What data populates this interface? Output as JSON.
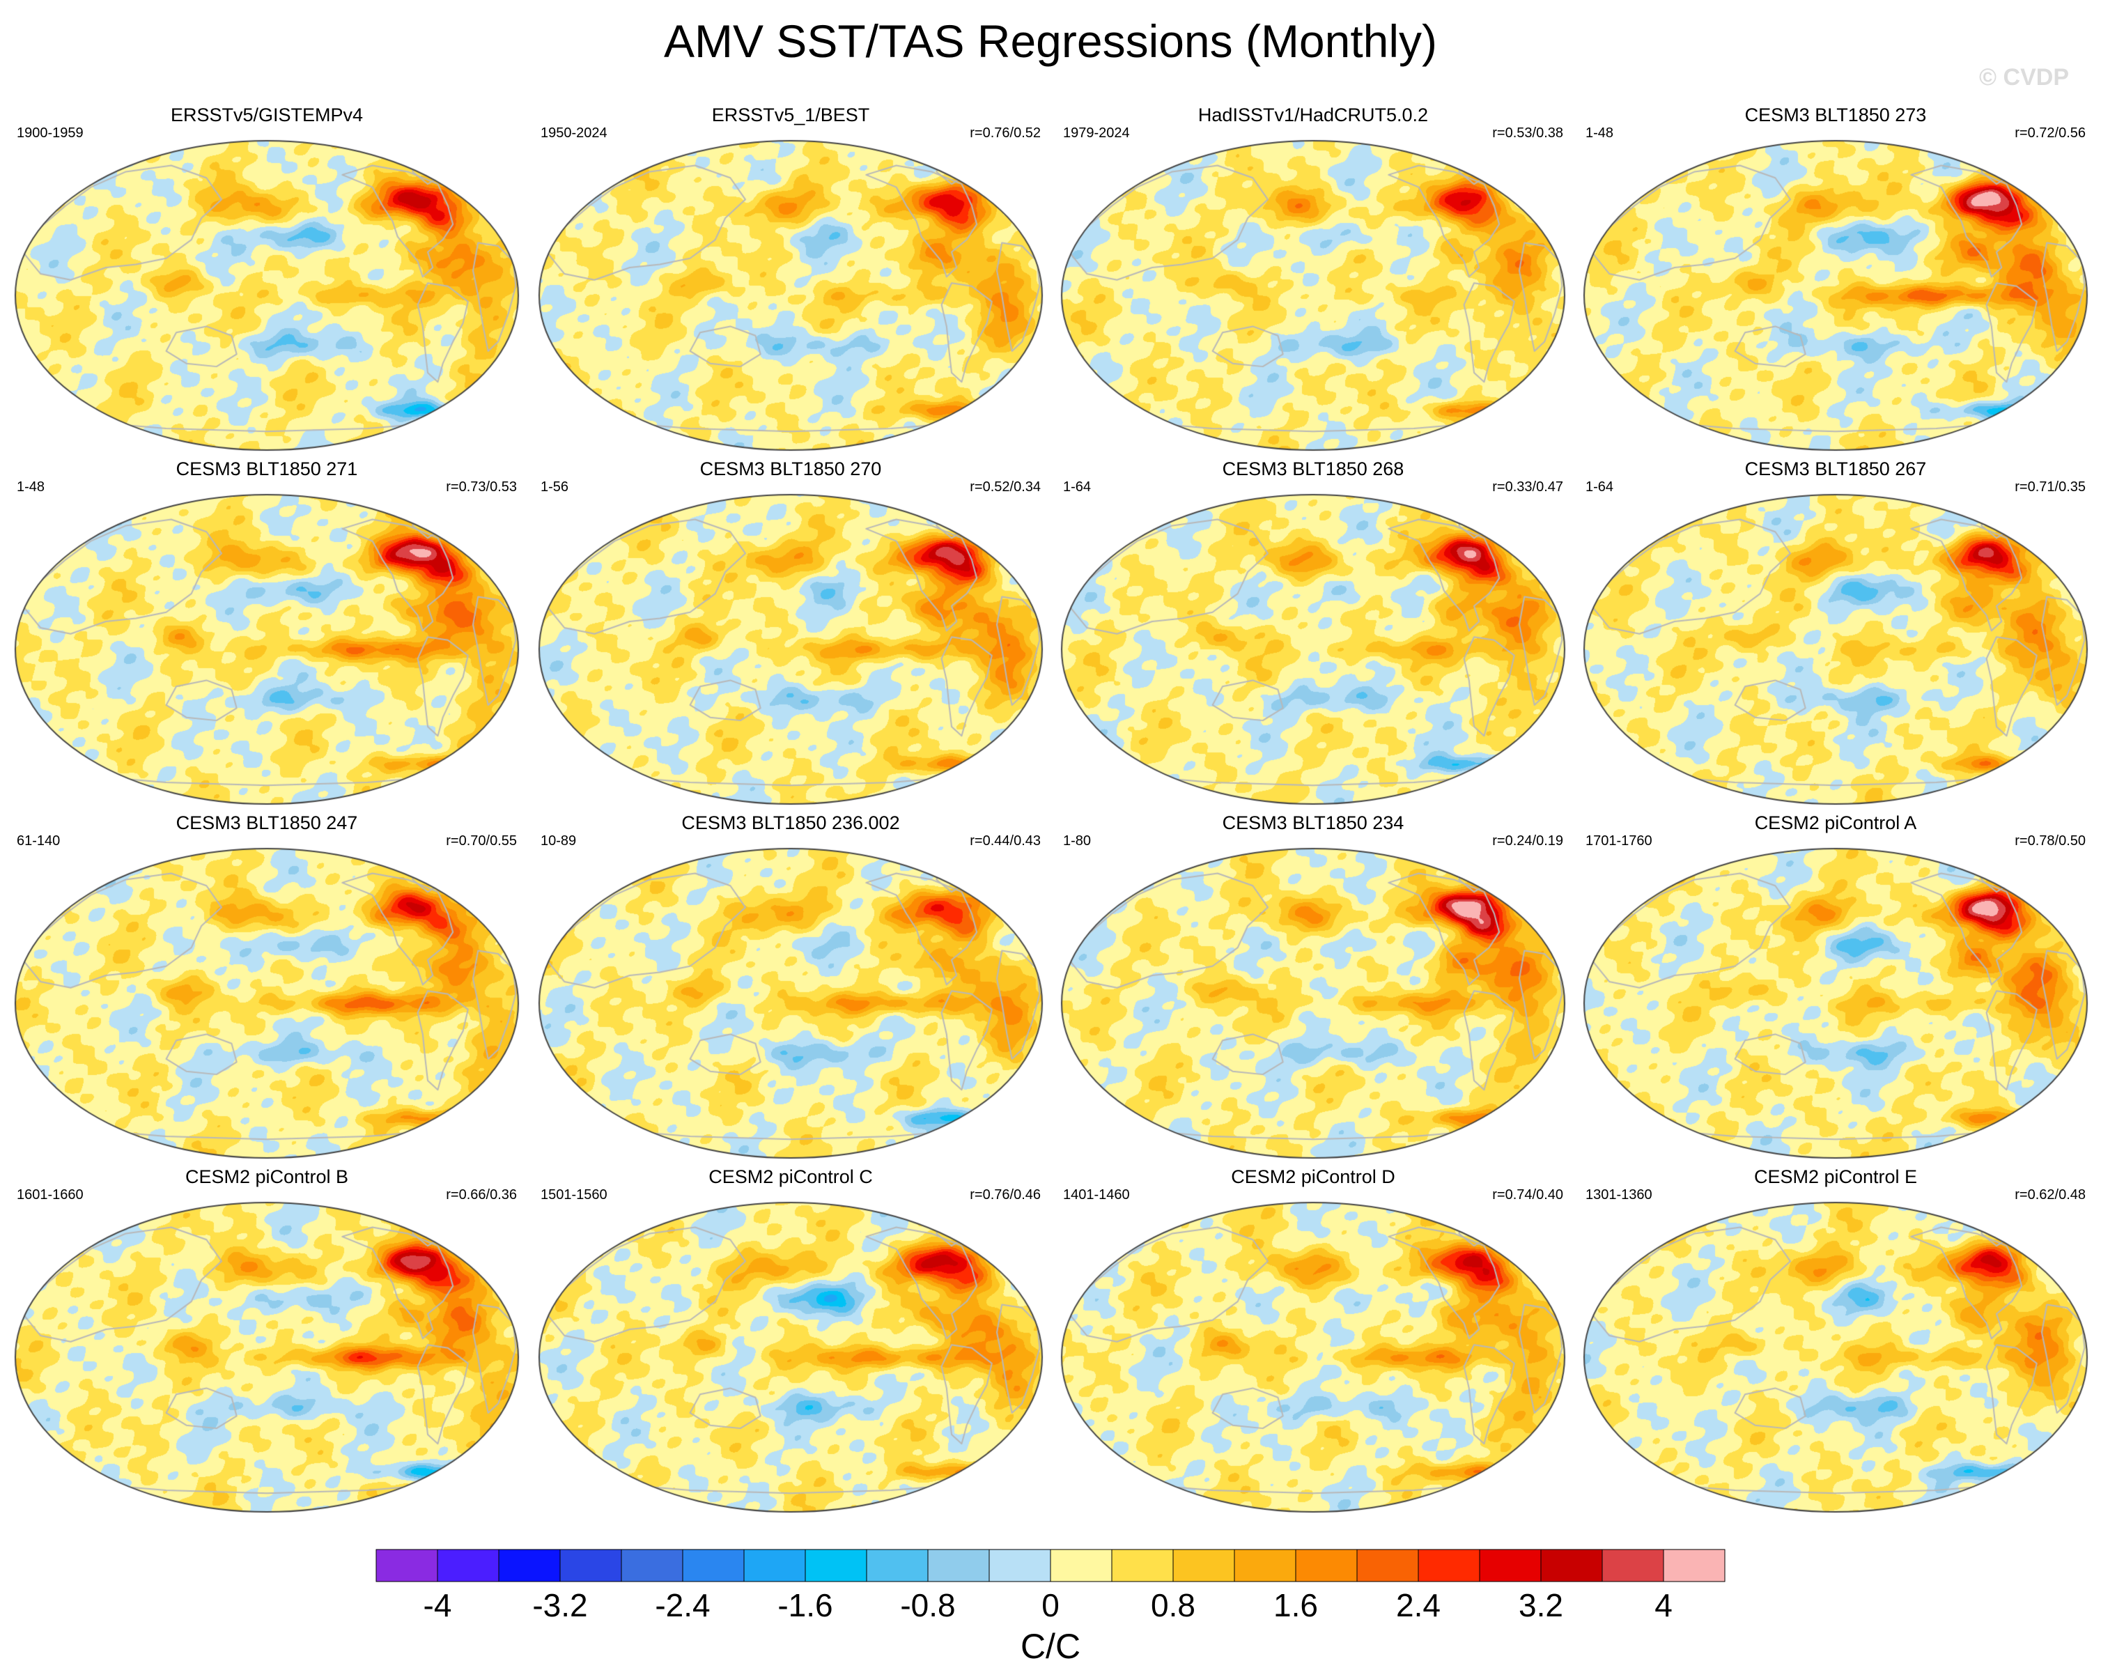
{
  "title": "AMV SST/TAS Regressions (Monthly)",
  "watermark": "© CVDP",
  "colors": {
    "background": "#ffffff",
    "land_outline": "#b8b8b8",
    "map_border": "#444444"
  },
  "panels": [
    {
      "title": "ERSSTv5/GISTEMPv4",
      "years": "1900-1959",
      "corr": "",
      "variant": 0
    },
    {
      "title": "ERSSTv5_1/BEST",
      "years": "1950-2024",
      "corr": "r=0.76/0.52",
      "variant": 1
    },
    {
      "title": "HadISSTv1/HadCRUT5.0.2",
      "years": "1979-2024",
      "corr": "r=0.53/0.38",
      "variant": 2
    },
    {
      "title": "CESM3 BLT1850 273",
      "years": "1-48",
      "corr": "r=0.72/0.56",
      "variant": 3
    },
    {
      "title": "CESM3 BLT1850 271",
      "years": "1-48",
      "corr": "r=0.73/0.53",
      "variant": 4
    },
    {
      "title": "CESM3 BLT1850 270",
      "years": "1-56",
      "corr": "r=0.52/0.34",
      "variant": 5
    },
    {
      "title": "CESM3 BLT1850 268",
      "years": "1-64",
      "corr": "r=0.33/0.47",
      "variant": 6
    },
    {
      "title": "CESM3 BLT1850 267",
      "years": "1-64",
      "corr": "r=0.71/0.35",
      "variant": 7
    },
    {
      "title": "CESM3 BLT1850 247",
      "years": "61-140",
      "corr": "r=0.70/0.55",
      "variant": 8
    },
    {
      "title": "CESM3 BLT1850 236.002",
      "years": "10-89",
      "corr": "r=0.44/0.43",
      "variant": 9
    },
    {
      "title": "CESM3 BLT1850 234",
      "years": "1-80",
      "corr": "r=0.24/0.19",
      "variant": 10
    },
    {
      "title": "CESM2 piControl A",
      "years": "1701-1760",
      "corr": "r=0.78/0.50",
      "variant": 11
    },
    {
      "title": "CESM2 piControl B",
      "years": "1601-1660",
      "corr": "r=0.66/0.36",
      "variant": 12
    },
    {
      "title": "CESM2 piControl C",
      "years": "1501-1560",
      "corr": "r=0.76/0.46",
      "variant": 13
    },
    {
      "title": "CESM2 piControl D",
      "years": "1401-1460",
      "corr": "r=0.74/0.40",
      "variant": 14
    },
    {
      "title": "CESM2 piControl E",
      "years": "1301-1360",
      "corr": "r=0.62/0.48",
      "variant": 15
    }
  ],
  "colorbar": {
    "colors": [
      "#8a2be2",
      "#4b1eff",
      "#0a14ff",
      "#2a46e6",
      "#3a6ee0",
      "#2a86f0",
      "#1ea6f5",
      "#00c2f5",
      "#50c0f0",
      "#90ccec",
      "#b8e0f6",
      "#fff8a0",
      "#ffe04a",
      "#fcc421",
      "#fba90d",
      "#fc8a03",
      "#f96304",
      "#ff2a00",
      "#e60000",
      "#c80000",
      "#dc4246",
      "#fab4b4"
    ],
    "boundaries": [
      -4.4,
      -4.0,
      -3.6,
      -3.2,
      -2.8,
      -2.4,
      -2.0,
      -1.6,
      -1.2,
      -0.8,
      -0.4,
      0,
      0.4,
      0.8,
      1.2,
      1.6,
      2.0,
      2.4,
      2.8,
      3.2,
      3.6,
      4.0,
      4.4
    ],
    "tick_labels": [
      "-4",
      "-3.2",
      "-2.4",
      "-1.6",
      "-0.8",
      "0",
      "0.8",
      "1.6",
      "2.4",
      "3.2",
      "4"
    ],
    "label": "C/C"
  }
}
